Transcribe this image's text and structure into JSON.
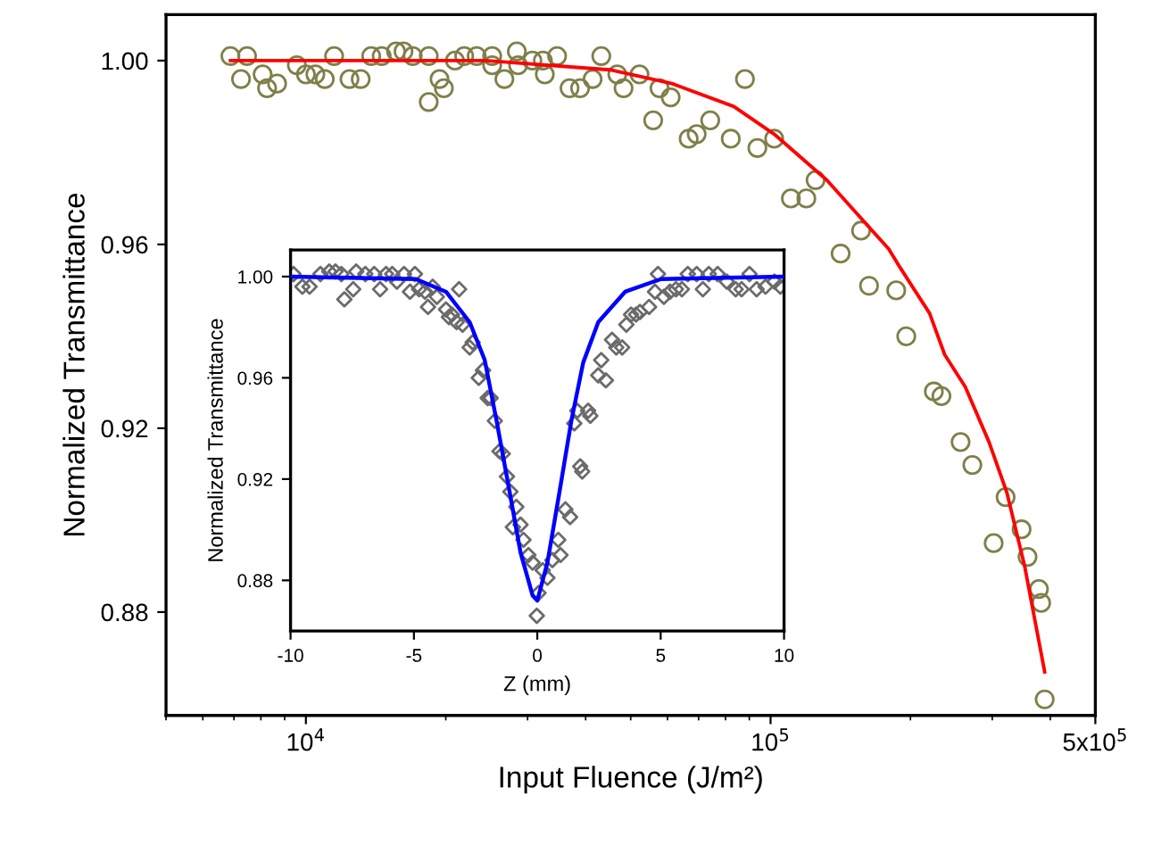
{
  "chart_data": [
    {
      "type": "scatter",
      "xlabel": "Input Fluence (J/m²)",
      "ylabel": "Normalized Transmittance",
      "log": "x",
      "xlim": [
        5000,
        500000
      ],
      "ylim": [
        0.8575,
        1.01
      ],
      "xticks": [
        {
          "value": 10000,
          "label": "10$^{4}$"
        },
        {
          "value": 100000,
          "label": "10$^{5}$"
        },
        {
          "value": 500000,
          "label": "5x10$^{5}$"
        }
      ],
      "yticks": [
        {
          "value": 0.88,
          "label": "0.88"
        },
        {
          "value": 0.92,
          "label": "0.92"
        },
        {
          "value": 0.96,
          "label": "0.96"
        },
        {
          "value": 1.0,
          "label": "1.00"
        }
      ],
      "series": [
        {
          "marker": "circle",
          "color": "#7f7f4a",
          "x": [
            6880,
            7470,
            7250,
            8070,
            8250,
            8670,
            9560,
            10000,
            10480,
            10980,
            11500,
            12410,
            13120,
            13820,
            14560,
            15630,
            16220,
            16980,
            18380,
            19390,
            19810,
            18380,
            20930,
            21910,
            23310,
            25170,
            25170,
            26740,
            28440,
            28620,
            30720,
            32360,
            32670,
            34720,
            36930,
            38910,
            41400,
            43220,
            46790,
            48260,
            52240,
            57670,
            60960,
            55900,
            66650,
            69340,
            74160,
            82100,
            88080,
            93670,
            101800,
            110600,
            119400,
            125000,
            141500,
            156600,
            162900,
            186400,
            195900,
            224600,
            233200,
            256400,
            271800,
            320500,
            302100,
            346900,
            357300,
            378000,
            382300,
            389000
          ],
          "values": [
            1.001,
            1.001,
            0.996,
            0.997,
            0.994,
            0.995,
            0.999,
            0.997,
            0.997,
            0.996,
            1.001,
            0.996,
            0.996,
            1.001,
            1.001,
            1.002,
            1.002,
            1.001,
            1.001,
            0.996,
            0.994,
            0.991,
            1.0,
            1.001,
            1.001,
            1.001,
            0.999,
            0.996,
            1.002,
            0.999,
            1.0,
            1.0,
            0.997,
            1.001,
            0.994,
            0.994,
            0.996,
            1.001,
            0.997,
            0.994,
            0.997,
            0.994,
            0.992,
            0.987,
            0.983,
            0.984,
            0.987,
            0.983,
            0.996,
            0.981,
            0.983,
            0.97,
            0.97,
            0.974,
            0.958,
            0.963,
            0.951,
            0.95,
            0.94,
            0.928,
            0.927,
            0.917,
            0.912,
            0.905,
            0.895,
            0.898,
            0.892,
            0.885,
            0.882,
            0.861
          ]
        },
        {
          "type": "line",
          "marker": "none",
          "color": "#ff0000",
          "x": [
            6880,
            24380,
            45080,
            61340,
            83370,
            101800,
            132100,
            179600,
            189900,
            219900,
            237000,
            262400,
            295200,
            322500,
            352200,
            389000
          ],
          "values": [
            1.0,
            1.0,
            0.998,
            0.995,
            0.99,
            0.984,
            0.974,
            0.959,
            0.955,
            0.945,
            0.936,
            0.929,
            0.917,
            0.906,
            0.89,
            0.867
          ]
        }
      ]
    },
    {
      "type": "scatter",
      "xlabel": "Z (mm)",
      "ylabel": "Normalized Transmittance",
      "xlim": [
        -10,
        10
      ],
      "ylim": [
        0.86,
        1.0105
      ],
      "xticks": [
        -10,
        -5,
        0,
        5,
        10
      ],
      "yticks": [
        {
          "value": 0.88,
          "label": "0.88"
        },
        {
          "value": 0.92,
          "label": "0.92"
        },
        {
          "value": 0.96,
          "label": "0.96"
        },
        {
          "value": 1.0,
          "label": "1.00"
        }
      ],
      "series": [
        {
          "marker": "diamond",
          "color": "#6b6b6b",
          "x": [
            -9.88,
            -9.52,
            -9.23,
            -8.79,
            -8.43,
            -8.18,
            -7.94,
            -7.82,
            -7.46,
            -7.34,
            -6.97,
            -6.61,
            -6.37,
            -6.13,
            -5.88,
            -5.69,
            -5.4,
            -5.16,
            -4.96,
            -4.79,
            -4.55,
            -4.43,
            -4.24,
            -4.07,
            -3.7,
            -3.58,
            -3.46,
            -3.27,
            -3.17,
            -3.03,
            -2.74,
            -2.62,
            -2.37,
            -2.2,
            -2.01,
            -1.89,
            -1.72,
            -1.53,
            -1.4,
            -1.23,
            -1.09,
            -0.99,
            -0.85,
            -0.68,
            -0.56,
            -0.36,
            -0.19,
            -0.02,
            0.05,
            0.22,
            0.41,
            0.61,
            0.85,
            0.94,
            1.14,
            1.33,
            1.5,
            1.62,
            1.74,
            1.82,
            2.06,
            2.15,
            2.47,
            2.59,
            2.78,
            3.03,
            3.2,
            3.44,
            3.61,
            3.8,
            4.0,
            4.16,
            4.53,
            4.77,
            4.89,
            5.13,
            5.38,
            5.62,
            5.86,
            6.1,
            6.46,
            6.71,
            6.95,
            7.31,
            7.68,
            8.04,
            8.28,
            8.6,
            8.89,
            9.25,
            9.61,
            9.85
          ],
          "values": [
            1.001,
            0.996,
            0.996,
            1.001,
            1.002,
            1.002,
            1.001,
            0.991,
            0.995,
            1.002,
            1.001,
            1.001,
            0.995,
            1.001,
            1.001,
            0.998,
            1.001,
            0.994,
            1.001,
            0.995,
            0.994,
            0.988,
            0.996,
            0.992,
            0.987,
            0.984,
            0.985,
            0.982,
            0.995,
            0.981,
            0.972,
            0.974,
            0.96,
            0.963,
            0.952,
            0.952,
            0.943,
            0.931,
            0.93,
            0.921,
            0.915,
            0.901,
            0.909,
            0.902,
            0.896,
            0.89,
            0.887,
            0.866,
            0.875,
            0.884,
            0.881,
            0.888,
            0.896,
            0.89,
            0.908,
            0.905,
            0.942,
            0.947,
            0.925,
            0.923,
            0.947,
            0.945,
            0.961,
            0.967,
            0.959,
            0.975,
            0.972,
            0.972,
            0.981,
            0.985,
            0.985,
            0.986,
            0.988,
            0.994,
            1.001,
            0.992,
            0.994,
            0.995,
            0.995,
            1.001,
            1.001,
            0.995,
            1.001,
            1.001,
            0.998,
            0.995,
            0.995,
            1.001,
            0.995,
            0.996,
            0.998,
            0.996
          ]
        },
        {
          "type": "line",
          "marker": "none",
          "color": "#0000ff",
          "x": [
            -10,
            -4.92,
            -3.7,
            -2.74,
            -2.13,
            -1.65,
            -1.16,
            -0.68,
            -0.19,
            0,
            0.41,
            0.9,
            1.38,
            1.86,
            2.47,
            3.56,
            5.01,
            10
          ],
          "values": [
            1.0,
            0.999,
            0.994,
            0.982,
            0.967,
            0.943,
            0.917,
            0.891,
            0.874,
            0.872,
            0.887,
            0.915,
            0.943,
            0.966,
            0.982,
            0.994,
            0.999,
            1.0
          ]
        }
      ]
    }
  ]
}
